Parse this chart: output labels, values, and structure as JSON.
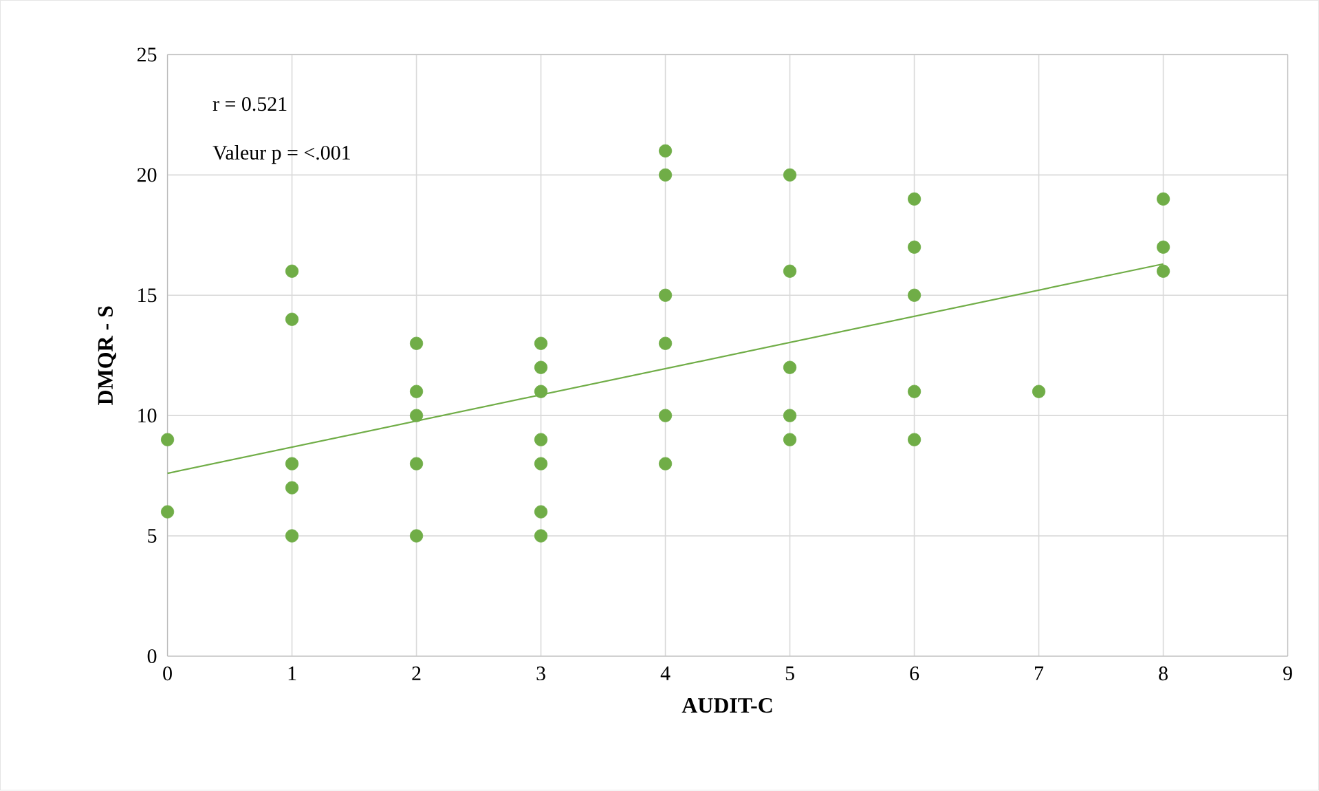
{
  "chart_data": {
    "type": "scatter",
    "xlabel": "AUDIT-C",
    "ylabel": "DMQR - S",
    "annotations": [
      "r = 0.521",
      "Valeur p = <.001"
    ],
    "xlim": [
      0,
      9
    ],
    "xticks": [
      0,
      1,
      2,
      3,
      4,
      5,
      6,
      7,
      8,
      9
    ],
    "ylim": [
      0,
      25
    ],
    "yticks": [
      0,
      5,
      10,
      15,
      20,
      25
    ],
    "grid": true,
    "series": [
      {
        "type": "scatter",
        "color": "#70ad47",
        "marker": "circle",
        "x": [
          0,
          0,
          1,
          1,
          1,
          1,
          1,
          2,
          2,
          2,
          2,
          2,
          3,
          3,
          3,
          3,
          3,
          3,
          3,
          4,
          4,
          4,
          4,
          4,
          4,
          5,
          5,
          5,
          5,
          5,
          6,
          6,
          6,
          6,
          6,
          7,
          8,
          8,
          8
        ],
        "values": [
          9,
          6,
          16,
          14,
          8,
          7,
          5,
          13,
          11,
          10,
          8,
          5,
          13,
          12,
          11,
          9,
          8,
          6,
          5,
          21,
          20,
          15,
          13,
          10,
          8,
          20,
          16,
          12,
          10,
          9,
          19,
          17,
          15,
          11,
          9,
          11,
          19,
          17,
          16
        ]
      },
      {
        "type": "line",
        "color": "#70ad47",
        "marker": "none",
        "x": [
          0,
          8
        ],
        "values": [
          7.6,
          16.3
        ]
      }
    ]
  }
}
